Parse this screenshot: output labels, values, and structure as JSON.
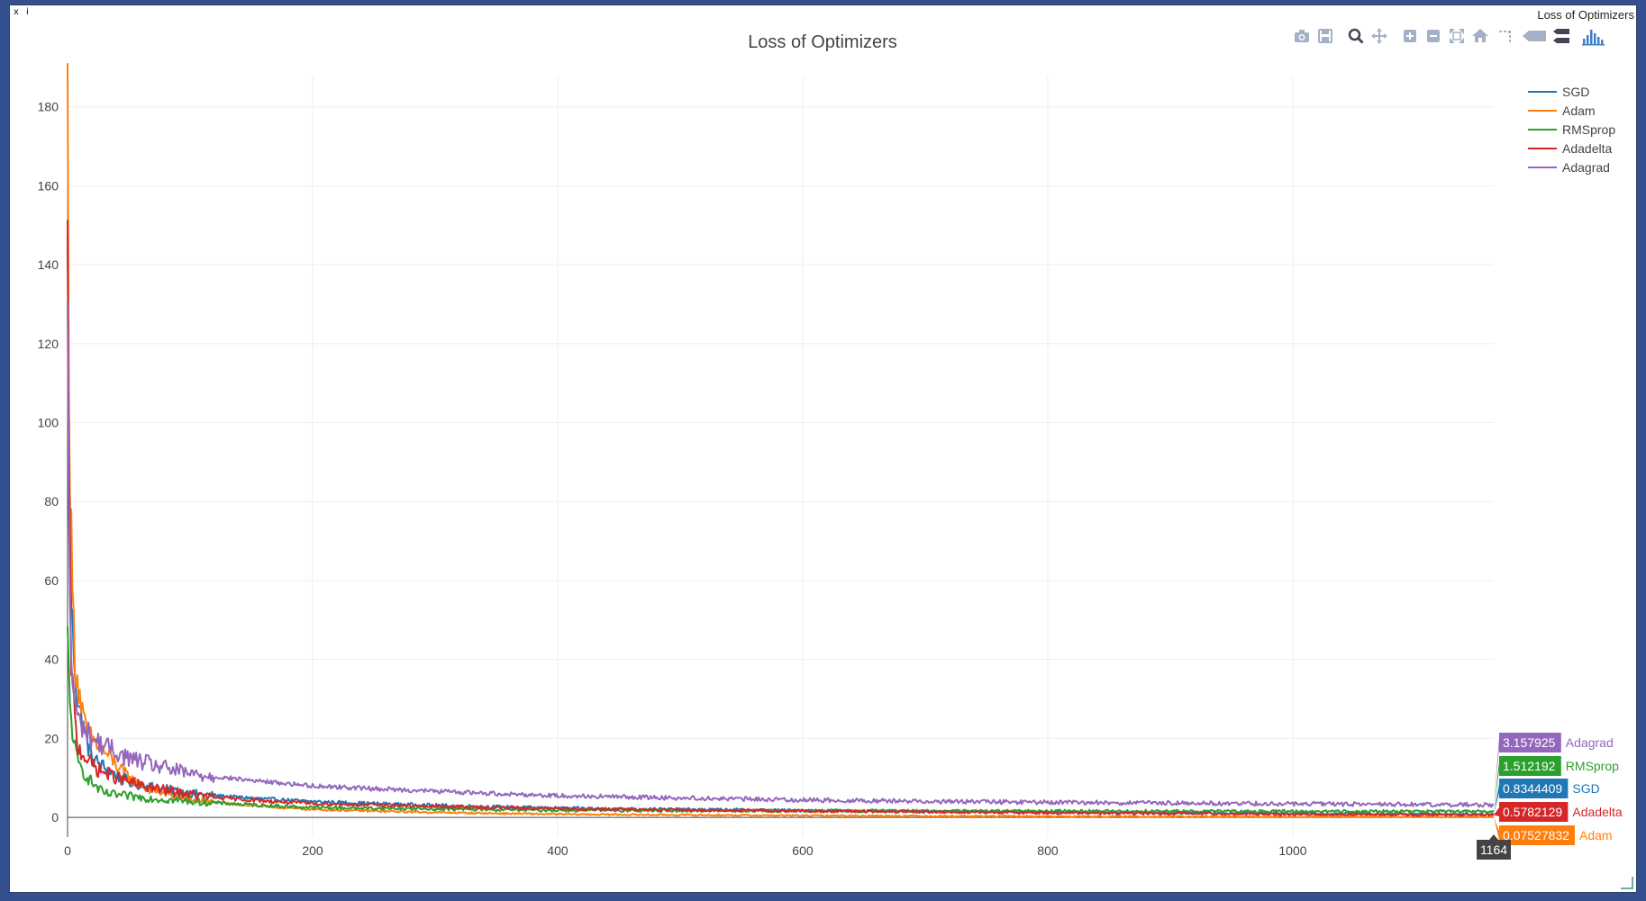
{
  "window": {
    "close_glyph": "x",
    "info_glyph": "i",
    "title": "Loss of Optimizers"
  },
  "modebar": {
    "icons": [
      "camera-icon",
      "save-icon",
      "zoom-icon",
      "pan-icon",
      "zoom-in-icon",
      "zoom-out-icon",
      "autoscale-icon",
      "home-icon",
      "spike-lines-icon",
      "hover-closest-icon",
      "hover-compare-icon",
      "plotly-logo-icon"
    ],
    "color": "#a3b0c6",
    "logo_color": "#3f7fc6"
  },
  "chart_data": {
    "type": "line",
    "title": "Loss of Optimizers",
    "xlabel": "",
    "ylabel": "",
    "xlim": [
      0,
      1164
    ],
    "ylim": [
      -5,
      187
    ],
    "x_ticks": [
      0,
      200,
      400,
      600,
      800,
      1000
    ],
    "y_ticks": [
      0,
      20,
      40,
      60,
      80,
      100,
      120,
      140,
      160,
      180
    ],
    "grid": true,
    "legend_position": "top-right",
    "hover_x": "1164",
    "series": [
      {
        "name": "SGD",
        "color": "#1f77b4",
        "final": 0.8344409,
        "label": "0.8344409",
        "profile": [
          [
            0,
            140
          ],
          [
            3,
            55
          ],
          [
            8,
            30
          ],
          [
            20,
            15
          ],
          [
            50,
            9
          ],
          [
            100,
            6
          ],
          [
            200,
            4
          ],
          [
            400,
            2.3
          ],
          [
            700,
            1.5
          ],
          [
            1164,
            0.83
          ]
        ],
        "noise": 0.45
      },
      {
        "name": "Adam",
        "color": "#ff7f0e",
        "final": 0.07527832,
        "label": "0.07527832",
        "profile": [
          [
            0,
            180
          ],
          [
            2,
            85
          ],
          [
            6,
            40
          ],
          [
            15,
            22
          ],
          [
            35,
            15
          ],
          [
            60,
            8
          ],
          [
            100,
            4.5
          ],
          [
            200,
            2.0
          ],
          [
            400,
            0.8
          ],
          [
            700,
            0.35
          ],
          [
            1164,
            0.08
          ]
        ],
        "noise": 0.3
      },
      {
        "name": "RMSprop",
        "color": "#2ca02c",
        "final": 1.512192,
        "label": "1.512192",
        "profile": [
          [
            0,
            45
          ],
          [
            2,
            28
          ],
          [
            8,
            14
          ],
          [
            30,
            6
          ],
          [
            80,
            4.5
          ],
          [
            200,
            2.5
          ],
          [
            400,
            1.8
          ],
          [
            700,
            1.6
          ],
          [
            1164,
            1.51
          ]
        ],
        "noise": 0.45
      },
      {
        "name": "Adadelta",
        "color": "#d62728",
        "final": 0.5782129,
        "label": "0.5782129",
        "profile": [
          [
            0,
            140
          ],
          [
            3,
            40
          ],
          [
            8,
            18
          ],
          [
            25,
            12
          ],
          [
            60,
            8
          ],
          [
            120,
            5
          ],
          [
            200,
            3.5
          ],
          [
            400,
            2.2
          ],
          [
            700,
            1.4
          ],
          [
            1164,
            0.58
          ]
        ],
        "noise": 0.45
      },
      {
        "name": "Adagrad",
        "color": "#9467bd",
        "final": 3.157925,
        "label": "3.157925",
        "profile": [
          [
            0,
            120
          ],
          [
            3,
            38
          ],
          [
            8,
            25
          ],
          [
            20,
            20
          ],
          [
            50,
            15
          ],
          [
            100,
            11
          ],
          [
            200,
            8
          ],
          [
            400,
            5.5
          ],
          [
            600,
            4.4
          ],
          [
            800,
            3.8
          ],
          [
            1164,
            3.16
          ]
        ],
        "noise": 0.55
      }
    ]
  }
}
